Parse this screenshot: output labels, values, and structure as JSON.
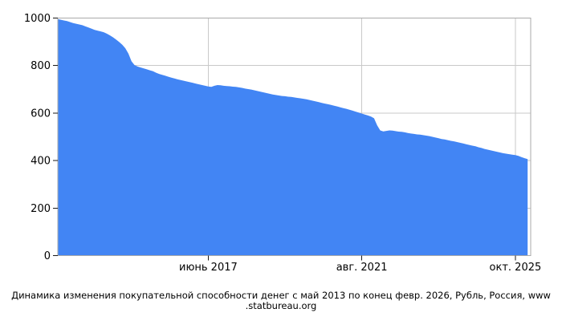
{
  "caption": {
    "line1": "Динамика изменения покупательной способности денег с май 2013 по конец февр. 2026, Рубль, Россия, www",
    "line2": ".statbureau.org"
  },
  "chart_data": {
    "type": "area",
    "title": "Динамика изменения покупательной способности денег с май 2013 по конец февр. 2026, Рубль, Россия, www.statbureau.org",
    "x_unit": "months since май 2013",
    "xlim": [
      0,
      154
    ],
    "ylim": [
      0,
      1000
    ],
    "grid": true,
    "legend": "none",
    "area_color": "#4285F4",
    "grid_color": "#c9c9c9",
    "border_color": "#aaaaaa",
    "tick_color": "#1a1a1a",
    "text_color": "#000000",
    "y_ticks": [
      0,
      200,
      400,
      600,
      800,
      1000
    ],
    "y_tick_labels": [
      "0",
      "200",
      "400",
      "600",
      "800",
      "1000"
    ],
    "x_ticks": [
      {
        "m": 49,
        "label": "июнь 2017"
      },
      {
        "m": 99,
        "label": "авг. 2021"
      },
      {
        "m": 149,
        "label": "окт. 2025"
      }
    ],
    "series": [
      {
        "points": [
          [
            0,
            996
          ],
          [
            1,
            993
          ],
          [
            2,
            990
          ],
          [
            3,
            987
          ],
          [
            4,
            983
          ],
          [
            5,
            979
          ],
          [
            6,
            976
          ],
          [
            7,
            973
          ],
          [
            8,
            970
          ],
          [
            9,
            965
          ],
          [
            10,
            960
          ],
          [
            11,
            955
          ],
          [
            12,
            950
          ],
          [
            13,
            947
          ],
          [
            14,
            944
          ],
          [
            15,
            940
          ],
          [
            16,
            934
          ],
          [
            17,
            927
          ],
          [
            18,
            919
          ],
          [
            19,
            909
          ],
          [
            20,
            899
          ],
          [
            21,
            888
          ],
          [
            22,
            873
          ],
          [
            23,
            850
          ],
          [
            24,
            818
          ],
          [
            25,
            802
          ],
          [
            26,
            796
          ],
          [
            27,
            792
          ],
          [
            28,
            788
          ],
          [
            29,
            784
          ],
          [
            30,
            780
          ],
          [
            31,
            776
          ],
          [
            32,
            770
          ],
          [
            33,
            765
          ],
          [
            34,
            761
          ],
          [
            35,
            757
          ],
          [
            36,
            753
          ],
          [
            37,
            749
          ],
          [
            38,
            746
          ],
          [
            39,
            742
          ],
          [
            40,
            739
          ],
          [
            41,
            736
          ],
          [
            42,
            733
          ],
          [
            43,
            730
          ],
          [
            44,
            727
          ],
          [
            45,
            724
          ],
          [
            46,
            721
          ],
          [
            47,
            718
          ],
          [
            48,
            715
          ],
          [
            49,
            712
          ],
          [
            50,
            710
          ],
          [
            51,
            715
          ],
          [
            52,
            718
          ],
          [
            53,
            717
          ],
          [
            54,
            715
          ],
          [
            55,
            714
          ],
          [
            56,
            713
          ],
          [
            57,
            711
          ],
          [
            58,
            710
          ],
          [
            59,
            708
          ],
          [
            60,
            706
          ],
          [
            61,
            703
          ],
          [
            62,
            701
          ],
          [
            63,
            699
          ],
          [
            64,
            696
          ],
          [
            65,
            693
          ],
          [
            66,
            690
          ],
          [
            67,
            687
          ],
          [
            68,
            684
          ],
          [
            69,
            681
          ],
          [
            70,
            678
          ],
          [
            71,
            676
          ],
          [
            72,
            674
          ],
          [
            73,
            672
          ],
          [
            74,
            671
          ],
          [
            75,
            669
          ],
          [
            76,
            668
          ],
          [
            77,
            666
          ],
          [
            78,
            664
          ],
          [
            79,
            662
          ],
          [
            80,
            660
          ],
          [
            81,
            658
          ],
          [
            82,
            655
          ],
          [
            83,
            652
          ],
          [
            84,
            649
          ],
          [
            85,
            646
          ],
          [
            86,
            643
          ],
          [
            87,
            640
          ],
          [
            88,
            637
          ],
          [
            89,
            634
          ],
          [
            90,
            631
          ],
          [
            91,
            628
          ],
          [
            92,
            624
          ],
          [
            93,
            621
          ],
          [
            94,
            618
          ],
          [
            95,
            614
          ],
          [
            96,
            610
          ],
          [
            97,
            606
          ],
          [
            98,
            602
          ],
          [
            99,
            598
          ],
          [
            100,
            594
          ],
          [
            101,
            590
          ],
          [
            102,
            585
          ],
          [
            103,
            578
          ],
          [
            104,
            548
          ],
          [
            105,
            527
          ],
          [
            106,
            523
          ],
          [
            107,
            525
          ],
          [
            108,
            527
          ],
          [
            109,
            526
          ],
          [
            110,
            524
          ],
          [
            111,
            522
          ],
          [
            112,
            521
          ],
          [
            113,
            519
          ],
          [
            114,
            516
          ],
          [
            115,
            514
          ],
          [
            116,
            512
          ],
          [
            117,
            510
          ],
          [
            118,
            509
          ],
          [
            119,
            507
          ],
          [
            120,
            505
          ],
          [
            121,
            503
          ],
          [
            122,
            500
          ],
          [
            123,
            497
          ],
          [
            124,
            494
          ],
          [
            125,
            491
          ],
          [
            126,
            489
          ],
          [
            127,
            486
          ],
          [
            128,
            483
          ],
          [
            129,
            481
          ],
          [
            130,
            478
          ],
          [
            131,
            475
          ],
          [
            132,
            472
          ],
          [
            133,
            469
          ],
          [
            134,
            466
          ],
          [
            135,
            463
          ],
          [
            136,
            460
          ],
          [
            137,
            456
          ],
          [
            138,
            453
          ],
          [
            139,
            449
          ],
          [
            140,
            446
          ],
          [
            141,
            443
          ],
          [
            142,
            440
          ],
          [
            143,
            437
          ],
          [
            144,
            434
          ],
          [
            145,
            431
          ],
          [
            146,
            429
          ],
          [
            147,
            427
          ],
          [
            148,
            425
          ],
          [
            149,
            423
          ],
          [
            150,
            420
          ],
          [
            151,
            415
          ],
          [
            152,
            410
          ],
          [
            153,
            406
          ]
        ]
      }
    ]
  }
}
